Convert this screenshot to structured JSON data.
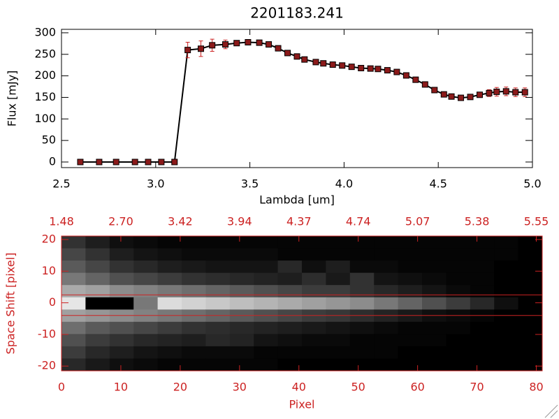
{
  "chart_data": [
    {
      "type": "line",
      "title": "2201183.241",
      "xlabel": "Lambda [um]",
      "ylabel": "Flux [mJy]",
      "x": [
        2.6,
        2.7,
        2.79,
        2.89,
        2.96,
        3.03,
        3.1,
        3.17,
        3.24,
        3.3,
        3.37,
        3.43,
        3.49,
        3.55,
        3.6,
        3.65,
        3.7,
        3.75,
        3.79,
        3.85,
        3.89,
        3.94,
        3.99,
        4.04,
        4.09,
        4.14,
        4.18,
        4.23,
        4.28,
        4.33,
        4.38,
        4.43,
        4.48,
        4.53,
        4.57,
        4.62,
        4.67,
        4.72,
        4.77,
        4.81,
        4.86,
        4.91,
        4.96
      ],
      "series": [
        {
          "color": "#000000",
          "error_color": "#cc2222",
          "marker_color": "#8b1a1a",
          "values": [
            0,
            0,
            0,
            0,
            0,
            0,
            0,
            260,
            263,
            271,
            273,
            276,
            278,
            277,
            273,
            264,
            253,
            245,
            238,
            232,
            229,
            226,
            224,
            221,
            218,
            217,
            216,
            213,
            209,
            201,
            191,
            180,
            167,
            157,
            152,
            149,
            151,
            156,
            160,
            163,
            164,
            162,
            162
          ],
          "errors": [
            2,
            2,
            2,
            2,
            2,
            2,
            2,
            18,
            18,
            14,
            10,
            5,
            4,
            4,
            4,
            4,
            4,
            4,
            4,
            3,
            3,
            3,
            3,
            3,
            3,
            3,
            3,
            4,
            4,
            4,
            4,
            4,
            4,
            4,
            4,
            4,
            5,
            6,
            8,
            10,
            10,
            10,
            10
          ]
        }
      ],
      "xlim": [
        2.5,
        5.0
      ],
      "xticks": [
        2.5,
        {
          "value": 3,
          "label": "3.0"
        },
        3.5,
        {
          "value": 4,
          "label": "4.0"
        },
        4.5,
        {
          "value": 5,
          "label": "5.0"
        }
      ],
      "ylim": [
        -13,
        308
      ],
      "yticks": [
        0,
        50,
        100,
        150,
        200,
        250,
        300
      ]
    },
    {
      "type": "image",
      "xlabel": "Pixel",
      "ylabel": "Space Shift [pixel]",
      "color": "#cc2222",
      "xlim": [
        0,
        81
      ],
      "xticks": [
        0,
        10,
        20,
        30,
        40,
        50,
        60,
        70,
        80
      ],
      "x2ticks": [
        {
          "value": 0,
          "label": "1.48"
        },
        {
          "value": 10,
          "label": "2.70"
        },
        {
          "value": 20,
          "label": "3.42"
        },
        {
          "value": 30,
          "label": "3.94"
        },
        {
          "value": 40,
          "label": "4.37"
        },
        {
          "value": 50,
          "label": "4.74"
        },
        {
          "value": 60,
          "label": "5.07"
        },
        {
          "value": 70,
          "label": "5.38"
        },
        {
          "value": 80,
          "label": "5.55"
        }
      ],
      "ylim": [
        -21.5,
        21.1
      ],
      "yticks": [
        -20,
        -10,
        0,
        10,
        20
      ],
      "lines": [
        2.5,
        -4
      ],
      "z": [
        [
          50,
          30,
          15,
          10,
          5,
          5,
          5,
          5,
          5,
          5,
          5,
          5,
          5,
          5,
          5,
          5,
          5,
          5,
          5,
          0
        ],
        [
          70,
          50,
          30,
          20,
          15,
          10,
          10,
          10,
          10,
          5,
          5,
          5,
          5,
          5,
          5,
          5,
          5,
          5,
          5,
          0
        ],
        [
          90,
          70,
          50,
          40,
          30,
          25,
          20,
          20,
          20,
          40,
          15,
          30,
          10,
          10,
          5,
          5,
          5,
          5,
          0,
          0
        ],
        [
          120,
          100,
          80,
          70,
          60,
          50,
          45,
          40,
          35,
          30,
          45,
          25,
          50,
          20,
          15,
          10,
          5,
          5,
          0,
          0
        ],
        [
          170,
          160,
          140,
          130,
          120,
          110,
          100,
          90,
          80,
          70,
          60,
          60,
          50,
          40,
          30,
          20,
          10,
          5,
          0,
          0
        ],
        [
          230,
          0,
          0,
          120,
          220,
          210,
          200,
          190,
          180,
          170,
          160,
          150,
          140,
          120,
          100,
          80,
          60,
          40,
          15,
          0
        ],
        [
          160,
          150,
          140,
          130,
          120,
          110,
          100,
          90,
          80,
          70,
          60,
          55,
          45,
          35,
          25,
          15,
          10,
          5,
          0,
          0
        ],
        [
          110,
          90,
          80,
          70,
          60,
          50,
          45,
          40,
          35,
          30,
          25,
          20,
          15,
          10,
          5,
          5,
          5,
          0,
          0,
          0
        ],
        [
          80,
          60,
          50,
          40,
          35,
          30,
          40,
          35,
          20,
          15,
          10,
          10,
          5,
          5,
          5,
          5,
          0,
          0,
          0,
          0
        ],
        [
          60,
          40,
          30,
          20,
          15,
          10,
          10,
          10,
          5,
          5,
          5,
          5,
          5,
          5,
          0,
          0,
          0,
          0,
          0,
          0
        ],
        [
          40,
          25,
          15,
          10,
          5,
          5,
          5,
          5,
          5,
          0,
          0,
          0,
          0,
          0,
          0,
          0,
          0,
          0,
          0,
          0
        ]
      ]
    }
  ]
}
